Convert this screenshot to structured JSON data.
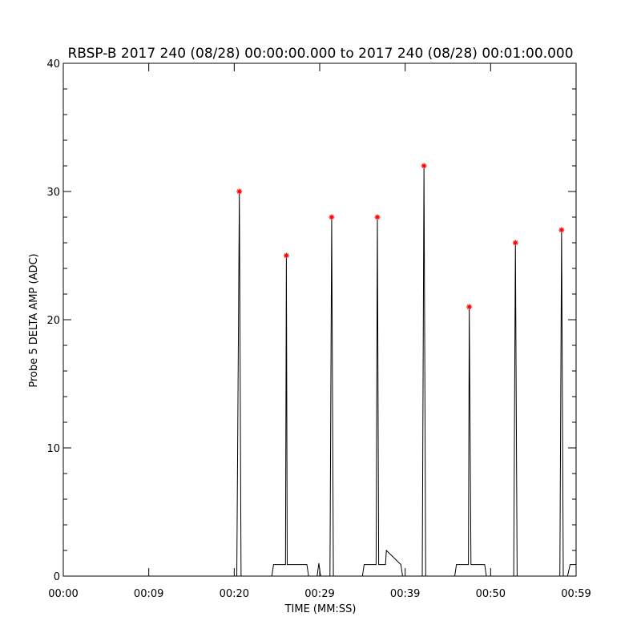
{
  "chart_data": {
    "type": "line",
    "title": "RBSP-B 2017 240 (08/28) 00:00:00.000 to 2017 240 (08/28) 00:01:00.000",
    "xlabel": "TIME (MM:SS)",
    "ylabel": "Probe 5 DELTA AMP (ADC)",
    "xlim": [
      0,
      60
    ],
    "ylim": [
      0,
      40
    ],
    "xticks": [
      {
        "value": 0,
        "label": "00:00"
      },
      {
        "value": 10,
        "label": "00:09"
      },
      {
        "value": 20,
        "label": "00:20"
      },
      {
        "value": 30,
        "label": "00:29"
      },
      {
        "value": 40,
        "label": "00:39"
      },
      {
        "value": 50,
        "label": "00:50"
      },
      {
        "value": 60,
        "label": "00:59"
      }
    ],
    "yticks": [
      0,
      10,
      20,
      30,
      40
    ],
    "yminor": 5,
    "series": [
      {
        "color": "#000000",
        "marker": "none",
        "x": [
          0,
          20.3,
          20.6,
          20.8,
          24.4,
          24.6,
          26.0,
          26.1,
          26.2,
          28.5,
          28.7,
          29.7,
          29.9,
          30.1,
          31.2,
          31.4,
          31.6,
          35.0,
          35.2,
          36.6,
          36.75,
          36.9,
          37.7,
          37.8,
          39.5,
          39.7,
          40.0,
          40.2,
          42.0,
          42.2,
          42.4,
          45.8,
          46.0,
          47.4,
          47.5,
          47.7,
          49.3,
          49.5,
          52.7,
          52.9,
          53.1,
          58.1,
          58.3,
          58.5,
          59.0,
          59.3,
          60
        ],
        "values": [
          0,
          0,
          30,
          0,
          0,
          0.9,
          0.9,
          25,
          0.9,
          0.9,
          0,
          0,
          1,
          0,
          0,
          28,
          0,
          0,
          0.9,
          0.9,
          28,
          0.9,
          0.9,
          2,
          0.9,
          0,
          0,
          0,
          0,
          32,
          0,
          0,
          0.9,
          0.9,
          21,
          0.9,
          0.9,
          0,
          0,
          26,
          0,
          0,
          27,
          0,
          0,
          0.9,
          0.9
        ]
      },
      {
        "color": "#ff0000",
        "marker": "asterisk",
        "x": [
          20.6,
          26.1,
          31.4,
          36.75,
          42.2,
          47.5,
          52.9,
          58.3
        ],
        "values": [
          30,
          25,
          28,
          28,
          32,
          21,
          26,
          27
        ]
      }
    ]
  }
}
